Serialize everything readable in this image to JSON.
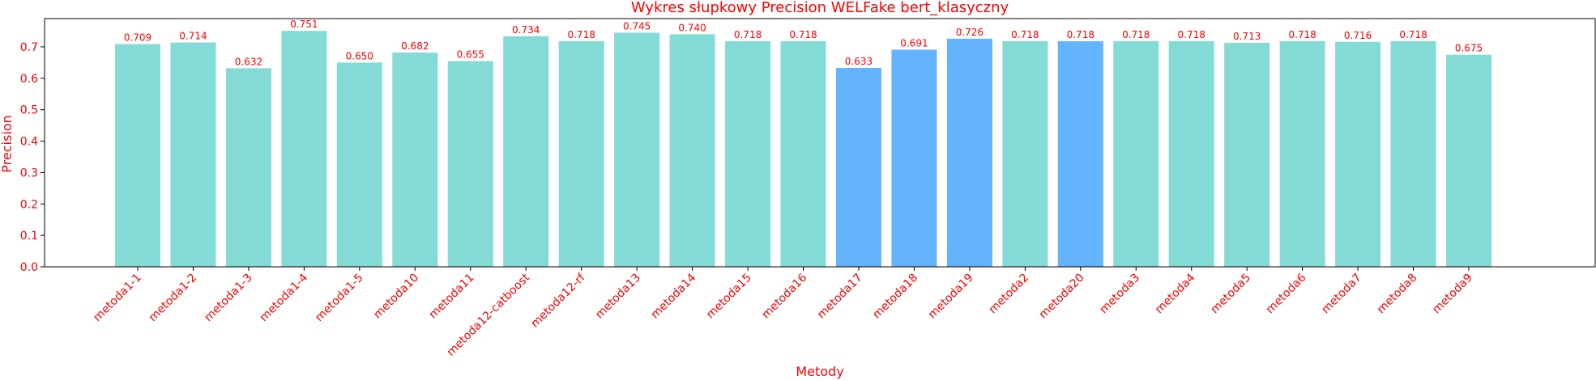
{
  "chart_data": {
    "type": "bar",
    "title": "Wykres słupkowy Precision WELFake bert_klasyczny",
    "xlabel": "Metody",
    "ylabel": "Precision",
    "ylim": [
      0,
      0.79
    ],
    "yticks": [
      0.0,
      0.1,
      0.2,
      0.3,
      0.4,
      0.5,
      0.6,
      0.7
    ],
    "ytick_labels": [
      "0.0",
      "0.1",
      "0.2",
      "0.3",
      "0.4",
      "0.5",
      "0.6",
      "0.7"
    ],
    "grid": false,
    "categories": [
      "metoda1-1",
      "metoda1-2",
      "metoda1-3",
      "metoda1-4",
      "metoda1-5",
      "metoda10",
      "metoda11",
      "metoda12-catboost",
      "metoda12-rf",
      "metoda13",
      "metoda14",
      "metoda15",
      "metoda16",
      "metoda17",
      "metoda18",
      "metoda19",
      "metoda2",
      "metoda20",
      "metoda3",
      "metoda4",
      "metoda5",
      "metoda6",
      "metoda7",
      "metoda8",
      "metoda9"
    ],
    "values": [
      0.709,
      0.714,
      0.632,
      0.751,
      0.65,
      0.682,
      0.655,
      0.734,
      0.718,
      0.745,
      0.74,
      0.718,
      0.718,
      0.633,
      0.691,
      0.726,
      0.718,
      0.718,
      0.718,
      0.718,
      0.713,
      0.718,
      0.716,
      0.718,
      0.675
    ],
    "value_labels": [
      "0.709",
      "0.714",
      "0.632",
      "0.751",
      "0.650",
      "0.682",
      "0.655",
      "0.734",
      "0.718",
      "0.745",
      "0.740",
      "0.718",
      "0.718",
      "0.633",
      "0.691",
      "0.726",
      "0.718",
      "0.718",
      "0.718",
      "0.718",
      "0.713",
      "0.718",
      "0.716",
      "0.718",
      "0.675"
    ],
    "bar_colors": [
      "#84dad5",
      "#84dad5",
      "#84dad5",
      "#84dad5",
      "#84dad5",
      "#84dad5",
      "#84dad5",
      "#84dad5",
      "#84dad5",
      "#84dad5",
      "#84dad5",
      "#84dad5",
      "#84dad5",
      "#63b3fd",
      "#63b3fd",
      "#63b3fd",
      "#84dad5",
      "#63b3fd",
      "#84dad5",
      "#84dad5",
      "#84dad5",
      "#84dad5",
      "#84dad5",
      "#84dad5",
      "#84dad5"
    ],
    "text_color": "#ff0000"
  }
}
